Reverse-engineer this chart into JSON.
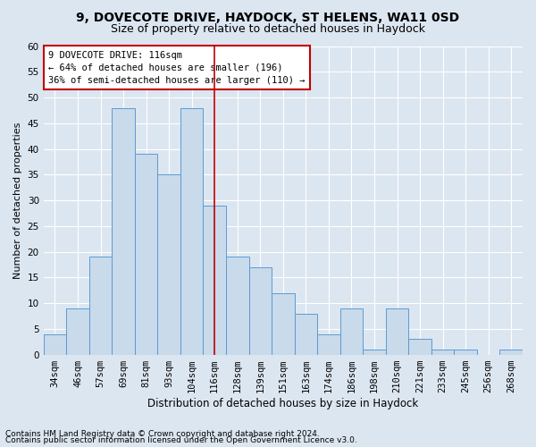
{
  "title1": "9, DOVECOTE DRIVE, HAYDOCK, ST HELENS, WA11 0SD",
  "title2": "Size of property relative to detached houses in Haydock",
  "xlabel": "Distribution of detached houses by size in Haydock",
  "ylabel": "Number of detached properties",
  "footnote1": "Contains HM Land Registry data © Crown copyright and database right 2024.",
  "footnote2": "Contains public sector information licensed under the Open Government Licence v3.0.",
  "annotation_title": "9 DOVECOTE DRIVE: 116sqm",
  "annotation_line1": "← 64% of detached houses are smaller (196)",
  "annotation_line2": "36% of semi-detached houses are larger (110) →",
  "categories": [
    "34sqm",
    "46sqm",
    "57sqm",
    "69sqm",
    "81sqm",
    "93sqm",
    "104sqm",
    "116sqm",
    "128sqm",
    "139sqm",
    "151sqm",
    "163sqm",
    "174sqm",
    "186sqm",
    "198sqm",
    "210sqm",
    "221sqm",
    "233sqm",
    "245sqm",
    "256sqm",
    "268sqm"
  ],
  "values": [
    4,
    9,
    19,
    48,
    39,
    35,
    48,
    29,
    19,
    17,
    12,
    8,
    4,
    9,
    1,
    9,
    3,
    1,
    1,
    0,
    1
  ],
  "highlight_index": 7,
  "bar_color": "#c9daea",
  "bar_edge_color": "#5b9bd5",
  "highlight_line_color": "#c00000",
  "background_color": "#dce6f1",
  "ylim": [
    0,
    60
  ],
  "yticks": [
    0,
    5,
    10,
    15,
    20,
    25,
    30,
    35,
    40,
    45,
    50,
    55,
    60
  ],
  "title1_fontsize": 10,
  "title2_fontsize": 9,
  "xlabel_fontsize": 8.5,
  "ylabel_fontsize": 8,
  "tick_fontsize": 7.5,
  "annotation_fontsize": 7.5,
  "footnote_fontsize": 6.5
}
